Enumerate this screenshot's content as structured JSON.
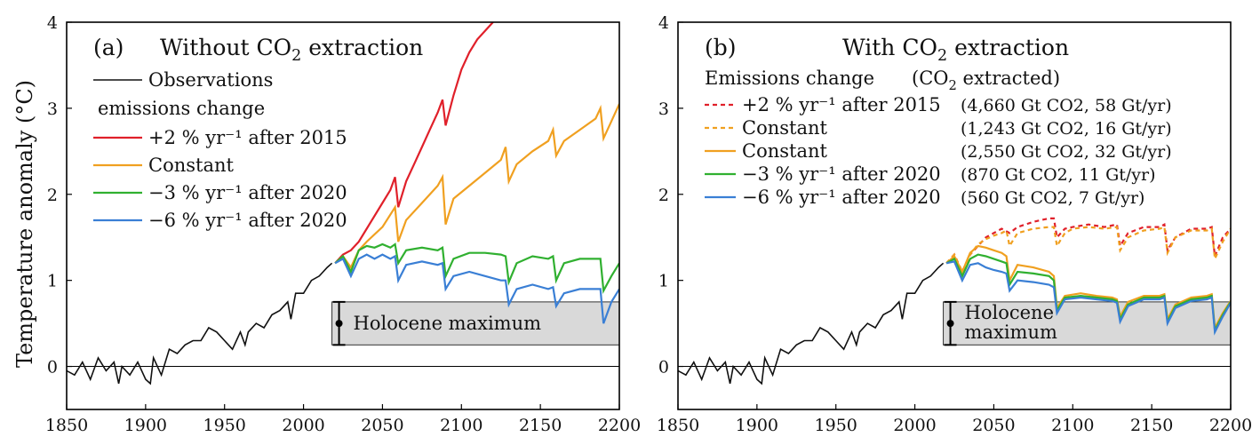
{
  "figure": {
    "ylabel": "Temperature anomaly (°C)"
  },
  "chart_data": [
    {
      "type": "line",
      "panel_tag": "(a)",
      "title_pre": "Without CO",
      "title_sub": "2",
      "title_post": " extraction",
      "ylabel": "Temperature anomaly (°C)",
      "xlim": [
        1850,
        2200
      ],
      "ylim": [
        -0.5,
        4
      ],
      "xticks": [
        1850,
        1900,
        1950,
        2000,
        2050,
        2100,
        2150,
        2200
      ],
      "yticks": [
        0,
        1,
        2,
        3,
        4
      ],
      "legend_placement": "top-left",
      "legend_header": "emissions change",
      "observations_label": "Observations",
      "observations": {
        "x": [
          1850,
          1855,
          1860,
          1865,
          1870,
          1875,
          1880,
          1883,
          1885,
          1890,
          1895,
          1900,
          1903,
          1905,
          1910,
          1915,
          1920,
          1925,
          1930,
          1935,
          1940,
          1945,
          1950,
          1955,
          1960,
          1963,
          1965,
          1970,
          1975,
          1980,
          1985,
          1990,
          1992,
          1995,
          2000,
          2005,
          2010,
          2015,
          2018
        ],
        "y": [
          -0.05,
          -0.1,
          0.05,
          -0.15,
          0.1,
          -0.05,
          0.05,
          -0.2,
          0.0,
          -0.1,
          0.05,
          -0.15,
          -0.2,
          0.1,
          -0.1,
          0.2,
          0.15,
          0.25,
          0.3,
          0.3,
          0.45,
          0.4,
          0.3,
          0.2,
          0.4,
          0.25,
          0.4,
          0.5,
          0.45,
          0.6,
          0.65,
          0.75,
          0.55,
          0.85,
          0.85,
          1.0,
          1.05,
          1.15,
          1.2
        ]
      },
      "series": [
        {
          "name": "+2 % yr⁻¹ after 2015",
          "color": "#e0202a",
          "dash": false,
          "x": [
            2020,
            2025,
            2030,
            2035,
            2040,
            2050,
            2055,
            2058,
            2060,
            2065,
            2070,
            2075,
            2080,
            2085,
            2088,
            2090,
            2095,
            2100,
            2105,
            2110,
            2115,
            2120
          ],
          "y": [
            1.2,
            1.3,
            1.35,
            1.45,
            1.6,
            1.9,
            2.05,
            2.2,
            1.85,
            2.15,
            2.35,
            2.55,
            2.75,
            2.95,
            3.1,
            2.8,
            3.15,
            3.45,
            3.65,
            3.8,
            3.9,
            4.0
          ]
        },
        {
          "name": "Constant",
          "color": "#f0a020",
          "dash": false,
          "x": [
            2020,
            2025,
            2030,
            2035,
            2040,
            2050,
            2058,
            2060,
            2065,
            2075,
            2085,
            2088,
            2090,
            2095,
            2105,
            2115,
            2125,
            2128,
            2130,
            2135,
            2145,
            2155,
            2158,
            2160,
            2165,
            2175,
            2185,
            2188,
            2190,
            2195,
            2200
          ],
          "y": [
            1.2,
            1.28,
            1.15,
            1.35,
            1.45,
            1.62,
            1.85,
            1.45,
            1.7,
            1.9,
            2.1,
            2.2,
            1.65,
            1.95,
            2.1,
            2.25,
            2.4,
            2.55,
            2.15,
            2.35,
            2.5,
            2.62,
            2.75,
            2.45,
            2.62,
            2.75,
            2.88,
            3.0,
            2.65,
            2.85,
            3.05
          ]
        },
        {
          "name": "−3 % yr⁻¹ after 2020",
          "color": "#30b030",
          "dash": false,
          "x": [
            2020,
            2025,
            2030,
            2035,
            2040,
            2045,
            2050,
            2055,
            2058,
            2060,
            2065,
            2075,
            2085,
            2088,
            2090,
            2095,
            2105,
            2115,
            2125,
            2128,
            2130,
            2135,
            2145,
            2155,
            2158,
            2160,
            2165,
            2175,
            2185,
            2188,
            2190,
            2195,
            2200
          ],
          "y": [
            1.2,
            1.28,
            1.1,
            1.35,
            1.4,
            1.38,
            1.42,
            1.38,
            1.42,
            1.2,
            1.35,
            1.38,
            1.35,
            1.38,
            1.05,
            1.25,
            1.32,
            1.32,
            1.3,
            1.28,
            0.98,
            1.2,
            1.28,
            1.25,
            1.28,
            1.0,
            1.2,
            1.25,
            1.25,
            1.25,
            0.88,
            1.05,
            1.2
          ]
        },
        {
          "name": "−6 % yr⁻¹ after 2020",
          "color": "#3a7fd5",
          "dash": false,
          "x": [
            2020,
            2025,
            2030,
            2035,
            2040,
            2045,
            2050,
            2055,
            2058,
            2060,
            2065,
            2075,
            2085,
            2088,
            2090,
            2095,
            2105,
            2115,
            2125,
            2128,
            2130,
            2135,
            2145,
            2155,
            2158,
            2160,
            2165,
            2175,
            2185,
            2188,
            2190,
            2195,
            2200
          ],
          "y": [
            1.2,
            1.25,
            1.05,
            1.25,
            1.3,
            1.25,
            1.3,
            1.25,
            1.28,
            1.0,
            1.18,
            1.22,
            1.18,
            1.2,
            0.9,
            1.05,
            1.1,
            1.05,
            1.0,
            1.0,
            0.72,
            0.9,
            0.95,
            0.9,
            0.92,
            0.7,
            0.85,
            0.9,
            0.9,
            0.9,
            0.5,
            0.75,
            0.9
          ]
        }
      ],
      "holocene_label": "Holocene maximum",
      "holocene_band": [
        0.25,
        0.75
      ],
      "holocene_start": 2018,
      "holocene_point": 0.5
    },
    {
      "type": "line",
      "panel_tag": "(b)",
      "title_pre": "With CO",
      "title_sub": "2",
      "title_post": " extraction",
      "ylabel": "",
      "xlim": [
        1850,
        2200
      ],
      "ylim": [
        -0.5,
        4
      ],
      "xticks": [
        1850,
        1900,
        1950,
        2000,
        2050,
        2100,
        2150,
        2200
      ],
      "yticks": [
        0,
        1,
        2,
        3,
        4
      ],
      "legend_placement": "top-left",
      "legend_header_a": "Emissions change",
      "legend_header_pre": "(CO",
      "legend_header_sub": "2",
      "legend_header_post": " extracted)",
      "observations": {
        "x": [
          1850,
          1855,
          1860,
          1865,
          1870,
          1875,
          1880,
          1883,
          1885,
          1890,
          1895,
          1900,
          1903,
          1905,
          1910,
          1915,
          1920,
          1925,
          1930,
          1935,
          1940,
          1945,
          1950,
          1955,
          1960,
          1963,
          1965,
          1970,
          1975,
          1980,
          1985,
          1990,
          1992,
          1995,
          2000,
          2005,
          2010,
          2015,
          2018
        ],
        "y": [
          -0.05,
          -0.1,
          0.05,
          -0.15,
          0.1,
          -0.05,
          0.05,
          -0.2,
          0.0,
          -0.1,
          0.05,
          -0.15,
          -0.2,
          0.1,
          -0.1,
          0.2,
          0.15,
          0.25,
          0.3,
          0.3,
          0.45,
          0.4,
          0.3,
          0.2,
          0.4,
          0.25,
          0.4,
          0.5,
          0.45,
          0.6,
          0.65,
          0.75,
          0.55,
          0.85,
          0.85,
          1.0,
          1.05,
          1.15,
          1.2
        ]
      },
      "series": [
        {
          "name": "+2 % yr⁻¹ after 2015",
          "extracted": "(4,660 Gt CO2, 58 Gt/yr)",
          "color": "#e0202a",
          "dash": true,
          "x": [
            2020,
            2025,
            2030,
            2035,
            2040,
            2045,
            2050,
            2055,
            2060,
            2065,
            2070,
            2075,
            2080,
            2085,
            2088,
            2090,
            2095,
            2100,
            2110,
            2120,
            2128,
            2130,
            2135,
            2145,
            2155,
            2158,
            2160,
            2165,
            2175,
            2185,
            2188,
            2190,
            2195,
            2200
          ],
          "y": [
            1.2,
            1.3,
            1.1,
            1.3,
            1.4,
            1.5,
            1.55,
            1.6,
            1.55,
            1.62,
            1.65,
            1.68,
            1.7,
            1.72,
            1.72,
            1.5,
            1.6,
            1.62,
            1.65,
            1.62,
            1.65,
            1.4,
            1.55,
            1.62,
            1.62,
            1.65,
            1.35,
            1.5,
            1.6,
            1.6,
            1.62,
            1.28,
            1.5,
            1.6
          ]
        },
        {
          "name": "Constant",
          "extracted": "(1,243 Gt CO2, 16 Gt/yr)",
          "color": "#f0a020",
          "dash": true,
          "x": [
            2020,
            2025,
            2030,
            2035,
            2040,
            2045,
            2050,
            2055,
            2058,
            2060,
            2065,
            2075,
            2085,
            2088,
            2090,
            2095,
            2100,
            2110,
            2120,
            2128,
            2130,
            2135,
            2145,
            2155,
            2158,
            2160,
            2165,
            2175,
            2185,
            2188,
            2190,
            2195,
            2200
          ],
          "y": [
            1.2,
            1.3,
            1.1,
            1.3,
            1.42,
            1.48,
            1.52,
            1.55,
            1.58,
            1.4,
            1.55,
            1.6,
            1.62,
            1.62,
            1.4,
            1.55,
            1.6,
            1.62,
            1.6,
            1.62,
            1.35,
            1.5,
            1.58,
            1.6,
            1.62,
            1.32,
            1.5,
            1.58,
            1.58,
            1.6,
            1.25,
            1.45,
            1.6
          ]
        },
        {
          "name": "Constant",
          "extracted": "(2,550 Gt CO2, 32 Gt/yr)",
          "color": "#f0a020",
          "dash": false,
          "x": [
            2020,
            2025,
            2030,
            2035,
            2040,
            2045,
            2050,
            2055,
            2058,
            2060,
            2065,
            2075,
            2085,
            2088,
            2090,
            2095,
            2105,
            2115,
            2125,
            2128,
            2130,
            2135,
            2145,
            2155,
            2158,
            2160,
            2165,
            2175,
            2185,
            2188,
            2190,
            2195,
            2200
          ],
          "y": [
            1.2,
            1.28,
            1.1,
            1.32,
            1.4,
            1.38,
            1.35,
            1.32,
            1.28,
            1.0,
            1.18,
            1.15,
            1.1,
            1.05,
            0.68,
            0.82,
            0.85,
            0.82,
            0.8,
            0.78,
            0.58,
            0.75,
            0.82,
            0.82,
            0.84,
            0.55,
            0.72,
            0.8,
            0.82,
            0.84,
            0.45,
            0.62,
            0.76
          ]
        },
        {
          "name": "−3 % yr⁻¹ after 2020",
          "extracted": "(870 Gt CO2, 11 Gt/yr)",
          "color": "#30b030",
          "dash": false,
          "x": [
            2020,
            2025,
            2030,
            2035,
            2040,
            2045,
            2050,
            2055,
            2058,
            2060,
            2065,
            2075,
            2085,
            2088,
            2090,
            2095,
            2105,
            2115,
            2125,
            2128,
            2130,
            2135,
            2145,
            2155,
            2158,
            2160,
            2165,
            2175,
            2185,
            2188,
            2190,
            2195,
            2200
          ],
          "y": [
            1.2,
            1.25,
            1.05,
            1.25,
            1.3,
            1.28,
            1.25,
            1.22,
            1.2,
            0.95,
            1.1,
            1.08,
            1.05,
            1.0,
            0.65,
            0.8,
            0.82,
            0.8,
            0.78,
            0.76,
            0.55,
            0.72,
            0.8,
            0.8,
            0.82,
            0.52,
            0.7,
            0.78,
            0.8,
            0.82,
            0.42,
            0.6,
            0.75
          ]
        },
        {
          "name": "−6 % yr⁻¹ after 2020",
          "extracted": "(560 Gt CO2, 7 Gt/yr)",
          "color": "#3a7fd5",
          "dash": false,
          "x": [
            2020,
            2025,
            2030,
            2035,
            2040,
            2045,
            2050,
            2055,
            2058,
            2060,
            2065,
            2075,
            2085,
            2088,
            2090,
            2095,
            2105,
            2115,
            2125,
            2128,
            2130,
            2135,
            2145,
            2155,
            2158,
            2160,
            2165,
            2175,
            2185,
            2188,
            2190,
            2195,
            2200
          ],
          "y": [
            1.2,
            1.22,
            1.0,
            1.18,
            1.2,
            1.15,
            1.12,
            1.1,
            1.08,
            0.88,
            1.0,
            0.98,
            0.95,
            0.92,
            0.62,
            0.78,
            0.8,
            0.78,
            0.76,
            0.74,
            0.52,
            0.7,
            0.78,
            0.78,
            0.8,
            0.5,
            0.68,
            0.76,
            0.78,
            0.8,
            0.4,
            0.58,
            0.74
          ]
        }
      ],
      "holocene_label_1": "Holocene",
      "holocene_label_2": "maximum",
      "holocene_band": [
        0.25,
        0.75
      ],
      "holocene_start": 2018,
      "holocene_point": 0.5
    }
  ]
}
